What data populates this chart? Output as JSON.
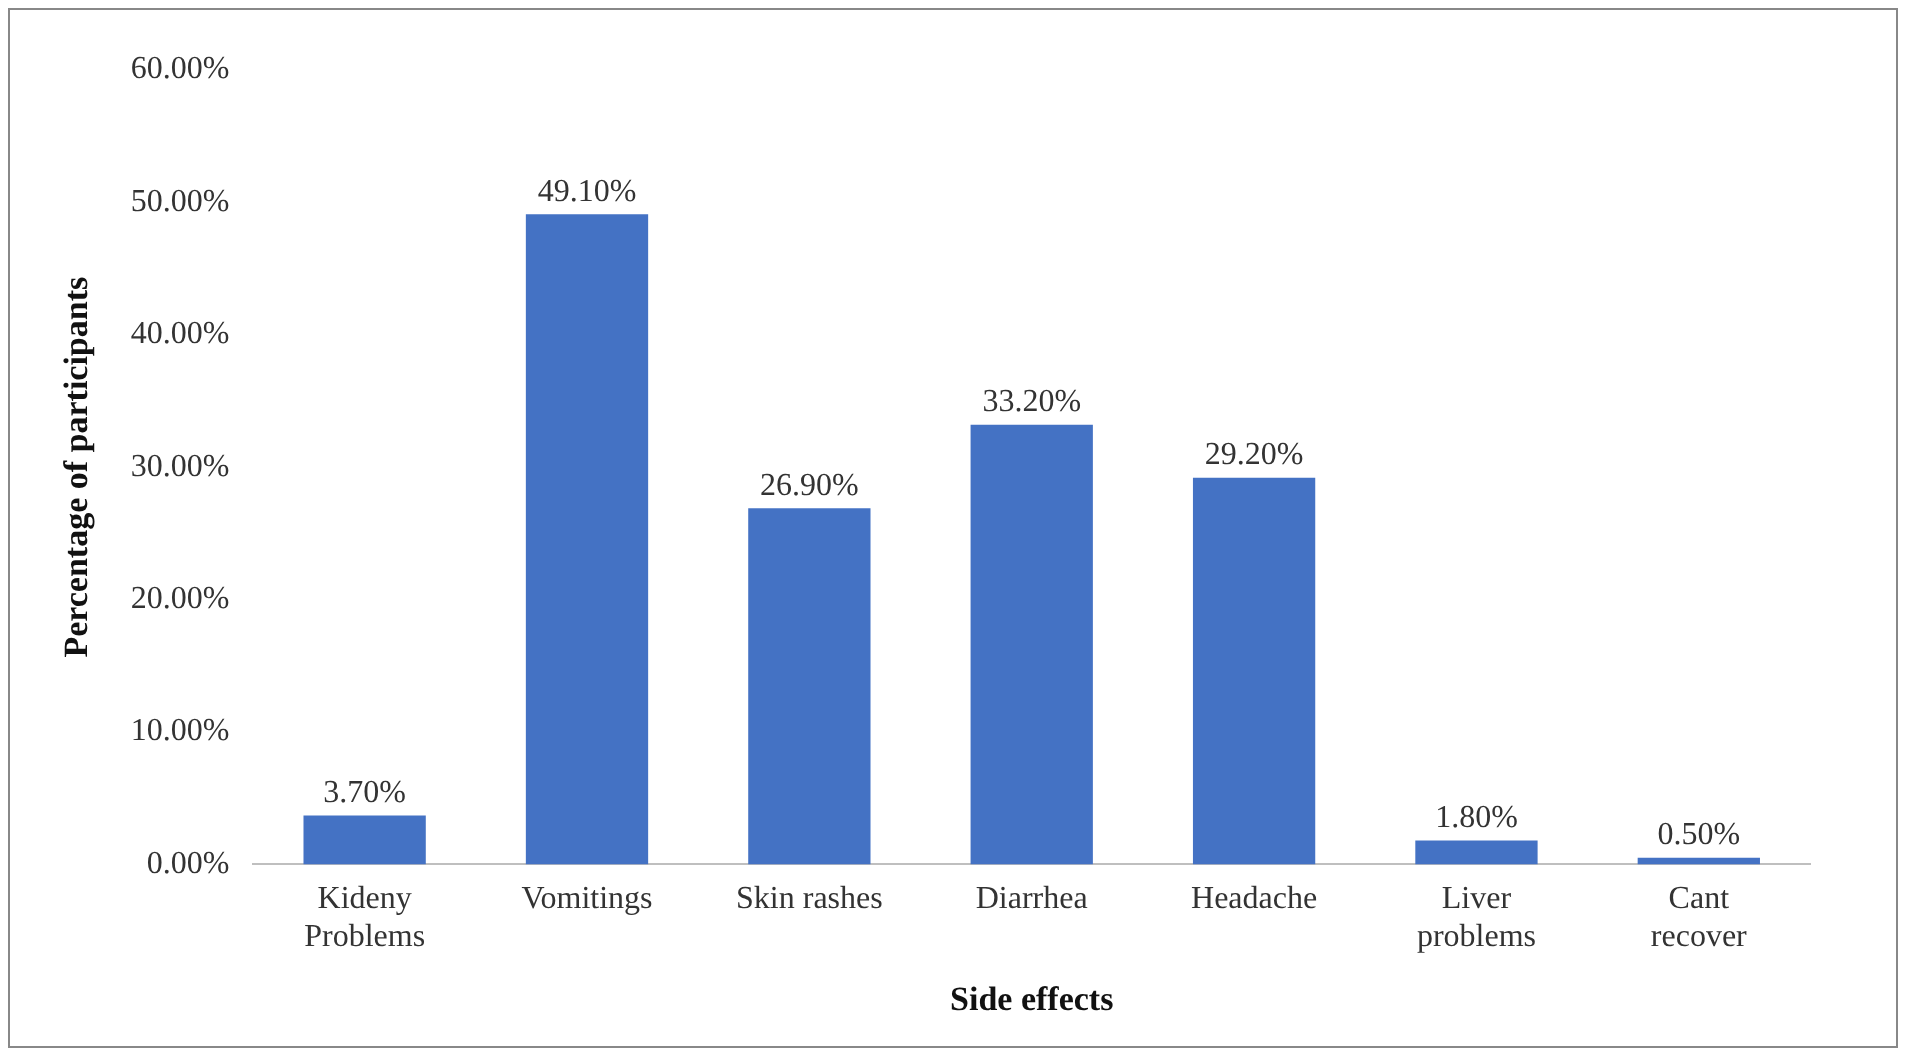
{
  "chart_data": {
    "type": "bar",
    "xlabel": "Side effects",
    "ylabel": "Percentage of participants",
    "categories": [
      "Kideny Problems",
      "Vomitings",
      "Skin rashes",
      "Diarrhea",
      "Headache",
      "Liver problems",
      "Cant recover"
    ],
    "values": [
      3.7,
      49.1,
      26.9,
      33.2,
      29.2,
      1.8,
      0.5
    ],
    "value_labels": [
      "3.70%",
      "49.10%",
      "26.90%",
      "33.20%",
      "29.20%",
      "1.80%",
      "0.50%"
    ],
    "color": "#4472c4",
    "ylim": [
      0,
      60
    ],
    "yticks": [
      {
        "value": 0,
        "label": "0.00%"
      },
      {
        "value": 10,
        "label": "10.00%"
      },
      {
        "value": 20,
        "label": "20.00%"
      },
      {
        "value": 30,
        "label": "30.00%"
      },
      {
        "value": 40,
        "label": "40.00%"
      },
      {
        "value": 50,
        "label": "50.00%"
      },
      {
        "value": 60,
        "label": "60.00%"
      }
    ],
    "grid": false,
    "legend": false
  }
}
